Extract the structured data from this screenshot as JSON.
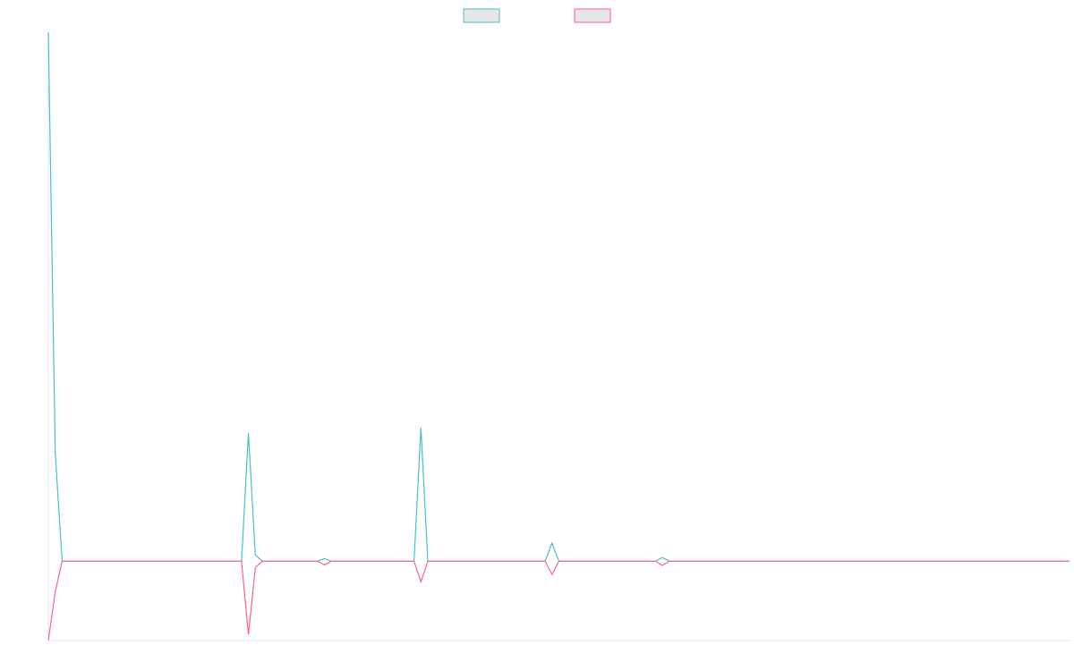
{
  "chart_data": {
    "type": "line",
    "x": [
      0,
      1,
      2,
      28,
      29,
      30,
      31,
      39,
      40,
      41,
      53,
      54,
      55,
      72,
      73,
      74,
      88,
      89,
      90,
      148
    ],
    "xlim": [
      0,
      148
    ],
    "ylim": [
      -15,
      100
    ],
    "legend": "top",
    "series": [
      {
        "color": "#4bc0c0",
        "values": [
          100,
          20.5,
          0,
          0,
          24.2,
          1.2,
          0,
          0,
          0.5,
          0,
          0,
          25.2,
          0,
          0,
          3.4,
          0,
          0,
          0.7,
          0,
          0
        ]
      },
      {
        "color": "#ff6384",
        "values": [
          -15,
          -5.8,
          0,
          0,
          -13.9,
          -1.2,
          0,
          0,
          -0.7,
          0,
          0,
          -3.9,
          0,
          0,
          -2.5,
          0,
          0,
          -0.8,
          0,
          0
        ]
      }
    ]
  }
}
